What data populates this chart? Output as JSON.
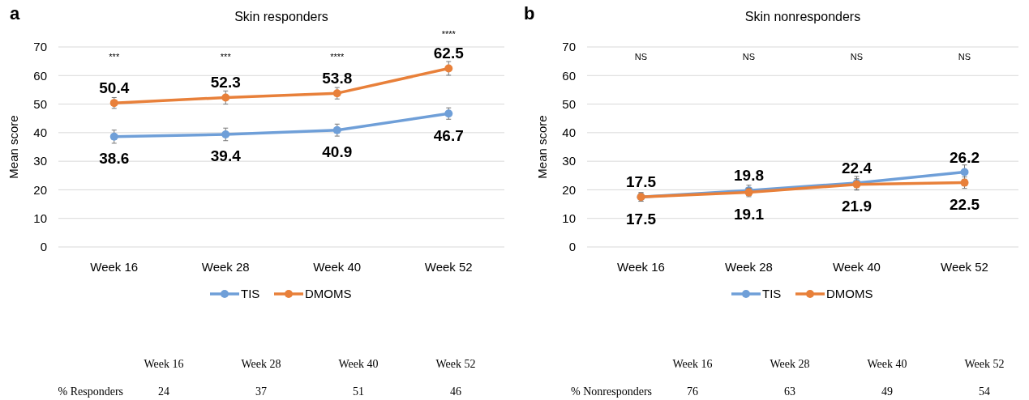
{
  "chart_data": [
    {
      "type": "line",
      "title": "Skin responders",
      "ylabel": "Mean score",
      "categories": [
        "Week 16",
        "Week 28",
        "Week 40",
        "Week 52"
      ],
      "series": [
        {
          "name": "TIS",
          "color": "#6f9fd8",
          "values": [
            38.6,
            39.4,
            40.9,
            46.7
          ],
          "errors": [
            2.3,
            2.2,
            2.1,
            2
          ]
        },
        {
          "name": "DMOMS",
          "color": "#e8803a",
          "values": [
            50.4,
            52.3,
            53.8,
            62.5
          ],
          "errors": [
            1.9,
            2.3,
            2,
            2.4
          ]
        }
      ],
      "ylim": [
        0,
        70
      ],
      "yticks": [
        0,
        10,
        20,
        30,
        40,
        50,
        60,
        70
      ],
      "grid": "y",
      "legend": "bottom",
      "marker": "circle",
      "data_labels": true,
      "annotations": [
        "a",
        "% Responders",
        "24",
        "37",
        "51",
        "46",
        "***",
        "***",
        "****",
        "****"
      ]
    },
    {
      "type": "line",
      "title": "Skin nonresponders",
      "ylabel": "Mean score",
      "categories": [
        "Week 16",
        "Week 28",
        "Week 40",
        "Week 52"
      ],
      "series": [
        {
          "name": "TIS",
          "color": "#6f9fd8",
          "values": [
            17.5,
            19.8,
            22.4,
            26.2
          ],
          "errors": [
            1.5,
            1.8,
            2.3,
            2.5
          ]
        },
        {
          "name": "DMOMS",
          "color": "#e8803a",
          "values": [
            17.5,
            19.1,
            21.9,
            22.5
          ],
          "errors": [
            1.5,
            1.5,
            2,
            2
          ]
        }
      ],
      "ylim": [
        0,
        70
      ],
      "yticks": [
        0,
        10,
        20,
        30,
        40,
        50,
        60,
        70
      ],
      "grid": "y",
      "legend": "bottom",
      "marker": "circle",
      "data_labels": true,
      "annotations": [
        "b",
        "% Nonresponders",
        "76",
        "63",
        "49",
        "54",
        "NS",
        "NS",
        "NS",
        "NS"
      ]
    }
  ]
}
